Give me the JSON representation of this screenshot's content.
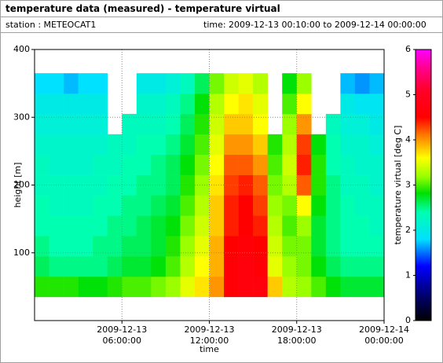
{
  "header": {
    "title": "temperature data (measured) - temperature virtual",
    "station": "station : METEOCAT1",
    "time": "time: 2009-12-13 00:10:00 to 2009-12-14 00:00:00"
  },
  "chart_data": {
    "type": "heatmap",
    "x_label": "time",
    "y_label": "height [m]",
    "xlim": [
      "2009-12-13 00:00",
      "2009-12-14 00:00"
    ],
    "xticks": [
      {
        "value": "2009-12-13 06:00",
        "label": [
          "2009-12-13",
          "06:00:00"
        ]
      },
      {
        "value": "2009-12-13 12:00",
        "label": [
          "2009-12-13",
          "12:00:00"
        ]
      },
      {
        "value": "2009-12-13 18:00",
        "label": [
          "2009-12-13",
          "18:00:00"
        ]
      },
      {
        "value": "2009-12-14 00:00",
        "label": [
          "2009-12-14",
          "00:00:00"
        ]
      }
    ],
    "ylim": [
      0,
      400
    ],
    "yticks": [
      100,
      200,
      300,
      400
    ],
    "grid": true,
    "x_bins": [
      "2009-12-13 00:00",
      "2009-12-13 01:00",
      "2009-12-13 02:00",
      "2009-12-13 03:00",
      "2009-12-13 04:00",
      "2009-12-13 05:00",
      "2009-12-13 06:00",
      "2009-12-13 07:00",
      "2009-12-13 08:00",
      "2009-12-13 09:00",
      "2009-12-13 10:00",
      "2009-12-13 11:00",
      "2009-12-13 12:00",
      "2009-12-13 13:00",
      "2009-12-13 14:00",
      "2009-12-13 15:00",
      "2009-12-13 16:00",
      "2009-12-13 17:00",
      "2009-12-13 18:00",
      "2009-12-13 19:00",
      "2009-12-13 20:00",
      "2009-12-13 21:00",
      "2009-12-13 22:00",
      "2009-12-13 23:00",
      "2009-12-14 00:00"
    ],
    "y_bins": [
      35,
      65,
      95,
      125,
      155,
      185,
      215,
      245,
      275,
      305,
      335,
      365
    ],
    "z": [
      [
        2.9,
        2.9,
        2.9,
        2.8,
        2.8,
        2.9,
        3.0,
        3.0,
        3.1,
        3.2,
        3.5,
        3.7,
        4.0,
        4.6,
        4.7,
        4.7,
        3.8,
        3.3,
        3.2,
        3.0,
        2.8,
        2.7,
        2.7,
        2.7
      ],
      [
        2.6,
        2.5,
        2.5,
        2.5,
        2.5,
        2.6,
        2.7,
        2.7,
        2.8,
        3.0,
        3.3,
        3.6,
        3.9,
        4.6,
        4.7,
        4.6,
        3.5,
        3.2,
        3.1,
        2.8,
        2.6,
        2.5,
        2.5,
        2.5
      ],
      [
        2.5,
        2.4,
        2.4,
        2.4,
        2.5,
        2.5,
        2.6,
        2.6,
        2.7,
        2.9,
        3.2,
        3.5,
        3.9,
        4.5,
        4.6,
        4.5,
        3.4,
        3.1,
        3.1,
        2.7,
        2.5,
        2.4,
        2.4,
        2.4
      ],
      [
        2.4,
        2.4,
        2.4,
        2.4,
        2.4,
        2.5,
        2.5,
        2.6,
        2.7,
        2.8,
        3.1,
        3.4,
        3.8,
        4.4,
        4.5,
        4.4,
        3.3,
        3.0,
        3.2,
        2.7,
        2.5,
        2.4,
        2.4,
        2.3
      ],
      [
        2.4,
        2.3,
        2.3,
        2.3,
        2.4,
        2.4,
        2.5,
        2.5,
        2.6,
        2.7,
        3.0,
        3.3,
        3.8,
        4.4,
        4.5,
        4.3,
        3.2,
        3.1,
        3.6,
        2.8,
        2.5,
        2.4,
        2.3,
        2.3
      ],
      [
        2.3,
        2.3,
        2.3,
        2.3,
        2.3,
        2.4,
        2.4,
        2.5,
        2.5,
        2.6,
        2.9,
        3.2,
        3.7,
        4.3,
        4.4,
        4.2,
        3.1,
        3.3,
        4.2,
        2.9,
        2.5,
        2.3,
        2.3,
        2.2
      ],
      [
        2.3,
        2.2,
        2.2,
        2.2,
        2.3,
        2.3,
        2.4,
        2.4,
        2.5,
        2.6,
        2.8,
        3.1,
        3.6,
        4.2,
        4.2,
        4.0,
        3.0,
        3.4,
        4.4,
        2.9,
        2.4,
        2.3,
        2.2,
        2.2
      ],
      [
        2.2,
        2.2,
        2.2,
        2.2,
        2.2,
        2.3,
        2.3,
        2.4,
        2.4,
        2.5,
        2.7,
        3.0,
        3.5,
        4.0,
        4.0,
        3.8,
        2.9,
        3.3,
        4.3,
        2.8,
        2.4,
        2.2,
        2.2,
        2.1
      ],
      [
        2.1,
        2.1,
        2.1,
        2.1,
        2.1,
        null,
        2.3,
        2.3,
        2.3,
        2.4,
        2.6,
        2.9,
        3.4,
        3.8,
        3.8,
        3.6,
        null,
        3.2,
        4.0,
        null,
        2.3,
        2.1,
        2.1,
        2.0
      ],
      [
        2.0,
        2.0,
        2.0,
        2.0,
        2.0,
        null,
        null,
        2.2,
        2.2,
        2.3,
        2.5,
        2.8,
        3.3,
        3.6,
        3.7,
        3.5,
        null,
        3.0,
        3.6,
        null,
        null,
        2.0,
        1.9,
        1.9
      ],
      [
        1.8,
        1.8,
        1.7,
        1.8,
        1.8,
        null,
        null,
        2.0,
        2.0,
        2.1,
        2.3,
        2.6,
        3.1,
        3.4,
        3.5,
        3.3,
        null,
        2.8,
        3.2,
        null,
        null,
        1.7,
        1.6,
        1.7
      ]
    ],
    "colorbar": {
      "label": "temperature virtual [deg C]",
      "lim": [
        0,
        6
      ],
      "ticks": [
        0,
        1,
        2,
        3,
        4,
        5,
        6
      ]
    }
  }
}
